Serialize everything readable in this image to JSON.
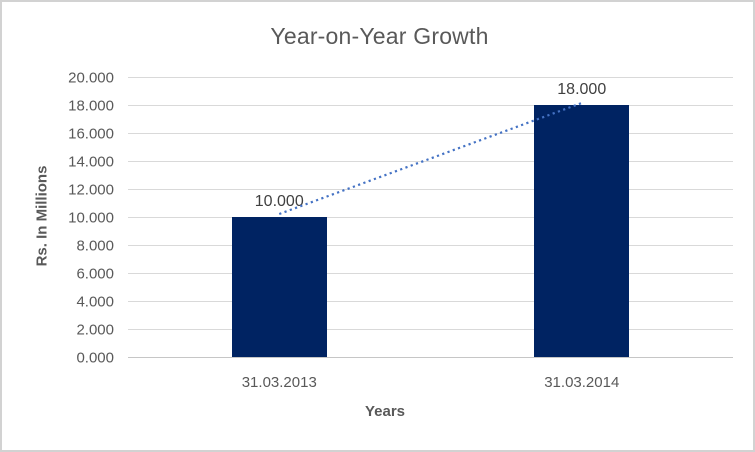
{
  "chart_data": {
    "type": "bar",
    "title": "Year-on-Year Growth",
    "xlabel": "Years",
    "ylabel": "Rs. In Millions",
    "categories": [
      "31.03.2013",
      "31.03.2014"
    ],
    "values": [
      10.0,
      18.0
    ],
    "value_labels": [
      "10.000",
      "18.000"
    ],
    "ylim": [
      0,
      20
    ],
    "ytick_step": 2,
    "ytick_labels": [
      "0.000",
      "2.000",
      "4.000",
      "6.000",
      "8.000",
      "10.000",
      "12.000",
      "14.000",
      "16.000",
      "18.000",
      "20.000"
    ],
    "grid": true,
    "legend": null,
    "trendline": {
      "style": "dotted",
      "color": "#4472C4",
      "from_value": 10.0,
      "to_value": 18.0
    },
    "colors": {
      "bar": "#002362",
      "title_text": "#595959",
      "axis_text": "#595959",
      "data_label_text": "#404040",
      "gridline": "#d9d9d9",
      "axis_line": "#c6c6c6",
      "chart_border": "#d2d2d2",
      "background": "#ffffff"
    }
  }
}
